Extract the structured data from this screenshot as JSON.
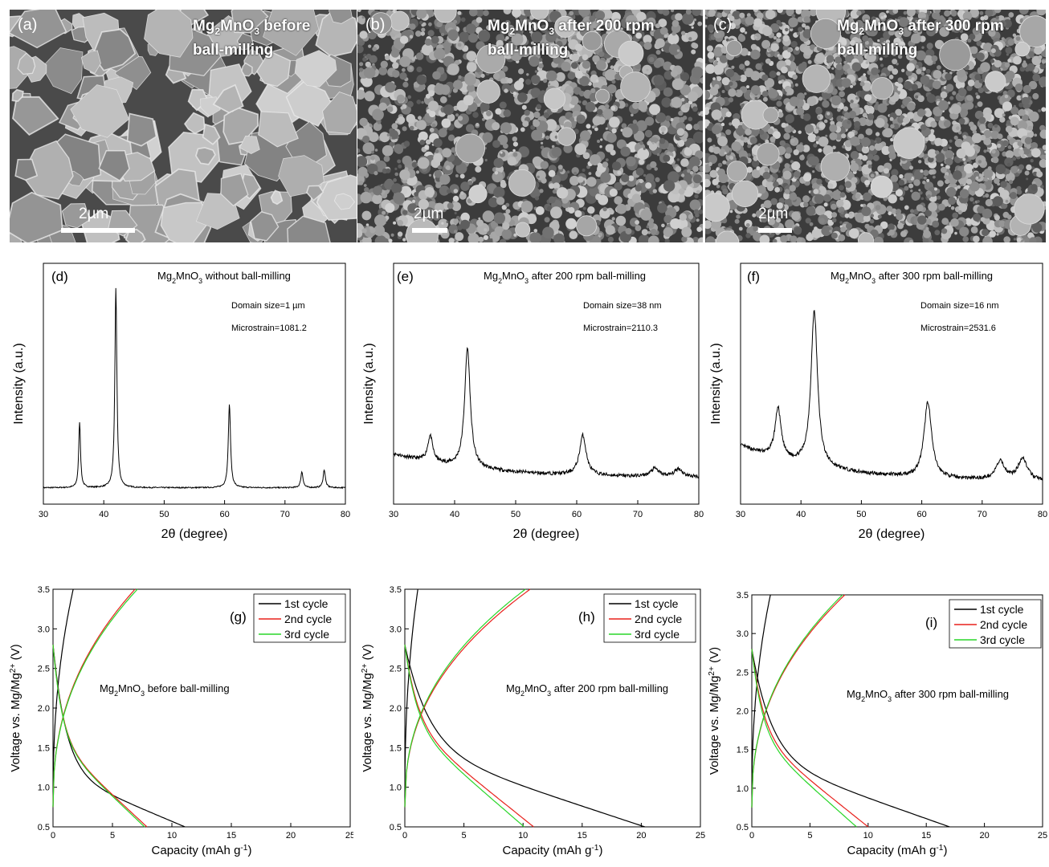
{
  "sem": [
    {
      "label": "(a)",
      "title_pre": "Mg",
      "title_sub1": "2",
      "title_mid": "MnO",
      "title_sub2": "3",
      "title_post": " before",
      "title_line2": "ball-milling",
      "scale": "2µm"
    },
    {
      "label": "(b)",
      "title_pre": "Mg",
      "title_sub1": "2",
      "title_mid": "MnO",
      "title_sub2": "3",
      "title_post": " after 200 rpm",
      "title_line2": "ball-milling",
      "scale": "2µm"
    },
    {
      "label": "(c)",
      "title_pre": "Mg",
      "title_sub1": "2",
      "title_mid": "MnO",
      "title_sub2": "3",
      "title_post": " after 300 rpm",
      "title_line2": "ball-milling",
      "scale": "2µm"
    }
  ],
  "colors": {
    "black": "#000000",
    "red": "#e8211c",
    "green": "#28d628",
    "sem_bg": "#5f5f5f"
  },
  "chart_data": [
    {
      "type": "line",
      "panel": "(d)",
      "title": "Mg2MnO3 without ball-milling",
      "note1": "Domain size=1 µm",
      "note2": "Microstrain=1081.2",
      "xlabel": "2θ (degree)",
      "ylabel": "Intensity (a.u.)",
      "xlim": [
        30,
        80
      ],
      "xticks": [
        30,
        40,
        50,
        60,
        70,
        80
      ],
      "baseline": 0.05,
      "background": 0.0,
      "peaks": [
        {
          "x": 36.0,
          "h": 0.33,
          "w": 0.18
        },
        {
          "x": 42.0,
          "h": 1.0,
          "w": 0.2
        },
        {
          "x": 60.8,
          "h": 0.42,
          "w": 0.22
        },
        {
          "x": 72.8,
          "h": 0.08,
          "w": 0.22
        },
        {
          "x": 76.5,
          "h": 0.09,
          "w": 0.22
        }
      ]
    },
    {
      "type": "line",
      "panel": "(e)",
      "title": "Mg2MnO3 after 200 rpm ball-milling",
      "note1": "Domain size=38 nm",
      "note2": "Microstrain=2110.3",
      "xlabel": "2θ (degree)",
      "ylabel": "Intensity (a.u.)",
      "xlim": [
        30,
        80
      ],
      "xticks": [
        30,
        40,
        50,
        60,
        70,
        80
      ],
      "baseline": 0.1,
      "background": 0.12,
      "peaks": [
        {
          "x": 36.0,
          "h": 0.13,
          "w": 0.5
        },
        {
          "x": 42.1,
          "h": 0.6,
          "w": 0.55
        },
        {
          "x": 61.0,
          "h": 0.2,
          "w": 0.65
        },
        {
          "x": 72.8,
          "h": 0.04,
          "w": 0.8
        },
        {
          "x": 76.7,
          "h": 0.04,
          "w": 0.8
        }
      ]
    },
    {
      "type": "line",
      "panel": "(f)",
      "title": "Mg2MnO3 after 300 rpm ball-milling",
      "note1": "Domain size=16 nm",
      "note2": "Microstrain=2531.6",
      "xlabel": "2θ (degree)",
      "ylabel": "Intensity (a.u.)",
      "xlim": [
        30,
        80
      ],
      "xticks": [
        30,
        40,
        50,
        60,
        70,
        80
      ],
      "baseline": 0.08,
      "background": 0.18,
      "peaks": [
        {
          "x": 36.2,
          "h": 0.25,
          "w": 0.6
        },
        {
          "x": 42.2,
          "h": 0.78,
          "w": 0.65
        },
        {
          "x": 61.0,
          "h": 0.38,
          "w": 0.75
        },
        {
          "x": 73.0,
          "h": 0.09,
          "w": 0.9
        },
        {
          "x": 76.7,
          "h": 0.11,
          "w": 0.9
        }
      ]
    },
    {
      "type": "line",
      "panel": "(g)",
      "annotation": "Mg2MnO3 before ball-milling",
      "xlabel": "Capacity (mAh g-1)",
      "ylabel": "Voltage vs. Mg/Mg2+ (V)",
      "xlim": [
        0,
        25
      ],
      "ylim": [
        0.5,
        3.5
      ],
      "xticks": [
        0,
        5,
        10,
        15,
        20,
        25
      ],
      "yticks": [
        0.5,
        1.0,
        1.5,
        2.0,
        2.5,
        3.0,
        3.5
      ],
      "series": [
        {
          "name": "1st cycle",
          "charge_end": 1.7,
          "discharge_end": 11.1,
          "knee": 1.2
        },
        {
          "name": "2nd cycle",
          "charge_end": 6.9,
          "discharge_end": 7.9,
          "knee": 1.6
        },
        {
          "name": "3rd cycle",
          "charge_end": 7.1,
          "discharge_end": 7.7,
          "knee": 1.6
        }
      ]
    },
    {
      "type": "line",
      "panel": "(h)",
      "annotation": "Mg2MnO3 after 200 rpm ball-milling",
      "xlabel": "Capacity (mAh g-1)",
      "ylabel": "Voltage vs. Mg/Mg2+ (V)",
      "xlim": [
        0,
        25
      ],
      "ylim": [
        0.5,
        3.5
      ],
      "xticks": [
        0,
        5,
        10,
        15,
        20,
        25
      ],
      "yticks": [
        0.5,
        1.0,
        1.5,
        2.0,
        2.5,
        3.0,
        3.5
      ],
      "series": [
        {
          "name": "1st cycle",
          "charge_end": 1.1,
          "discharge_end": 20.3,
          "knee": 1.5
        },
        {
          "name": "2nd cycle",
          "charge_end": 10.6,
          "discharge_end": 10.9,
          "knee": 1.8
        },
        {
          "name": "3rd cycle",
          "charge_end": 10.2,
          "discharge_end": 10.1,
          "knee": 1.8
        }
      ]
    },
    {
      "type": "line",
      "panel": "(i)",
      "annotation": "Mg2MnO3 after 300 rpm ball-milling",
      "xlabel": "Capacity (mAh g-1)",
      "ylabel": "Voltage vs. Mg/Mg2+ (V)",
      "xlim": [
        0,
        25
      ],
      "ylim": [
        0.5,
        3.5
      ],
      "xticks": [
        0,
        5,
        10,
        15,
        20,
        25
      ],
      "yticks": [
        0.5,
        1.0,
        1.5,
        2.0,
        2.5,
        3.0,
        3.5
      ],
      "series": [
        {
          "name": "1st cycle",
          "charge_end": 1.6,
          "discharge_end": 17.0,
          "knee": 1.4
        },
        {
          "name": "2nd cycle",
          "charge_end": 8.0,
          "discharge_end": 10.0,
          "knee": 1.7
        },
        {
          "name": "3rd cycle",
          "charge_end": 7.8,
          "discharge_end": 9.0,
          "knee": 1.7
        }
      ]
    }
  ]
}
